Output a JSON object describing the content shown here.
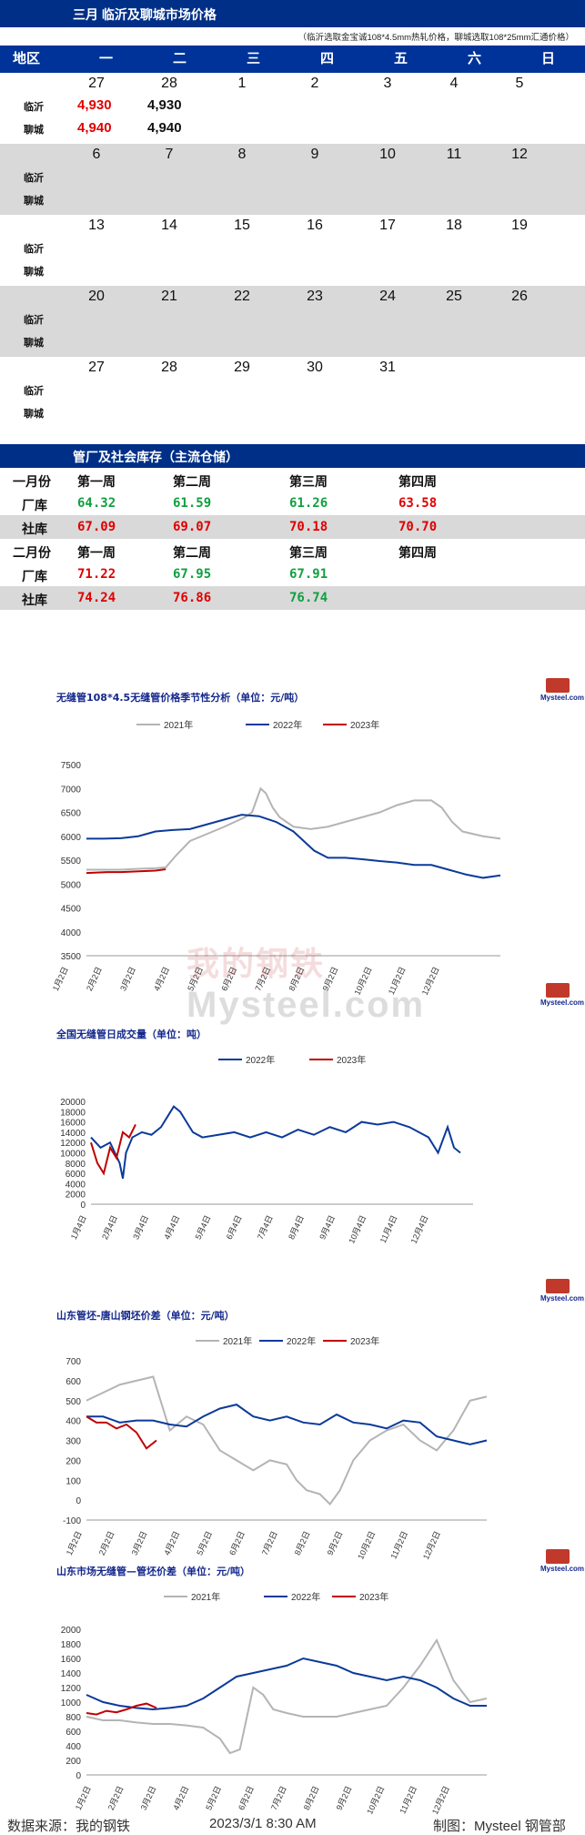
{
  "calendar": {
    "title": "三月 临沂及聊城市场价格",
    "note": "（临沂选取金宝诚108*4.5mm热轧价格，聊城选取108*25mm汇通价格）",
    "header": [
      "地区",
      "一",
      "二",
      "三",
      "四",
      "五",
      "六",
      "日"
    ],
    "region_labels": [
      "临沂",
      "聊城"
    ],
    "weeks": [
      {
        "days": [
          "27",
          "28",
          "1",
          "2",
          "3",
          "4",
          "5"
        ],
        "linyi": [
          "4,930",
          "4,930"
        ],
        "liaocheng": [
          "4,940",
          "4,940"
        ]
      },
      {
        "days": [
          "6",
          "7",
          "8",
          "9",
          "10",
          "11",
          "12"
        ]
      },
      {
        "days": [
          "13",
          "14",
          "15",
          "16",
          "17",
          "18",
          "19"
        ]
      },
      {
        "days": [
          "20",
          "21",
          "22",
          "23",
          "24",
          "25",
          "26"
        ]
      },
      {
        "days": [
          "27",
          "28",
          "29",
          "30",
          "31",
          "",
          ""
        ]
      }
    ]
  },
  "inventory": {
    "title": "管厂及社会库存（主流仓储）",
    "rows": [
      {
        "label": "一月份",
        "cells": [
          "第一周",
          "第二周",
          "第三周",
          "第四周"
        ],
        "kind": "header"
      },
      {
        "label": "厂库",
        "cells": [
          "64.32",
          "61.59",
          "61.26",
          "63.58"
        ],
        "colors": [
          "green",
          "green",
          "green",
          "red"
        ]
      },
      {
        "label": "社库",
        "cells": [
          "67.09",
          "69.07",
          "70.18",
          "70.70"
        ],
        "colors": [
          "red",
          "red",
          "red",
          "red"
        ]
      },
      {
        "label": "二月份",
        "cells": [
          "第一周",
          "第二周",
          "第三周",
          "第四周"
        ],
        "kind": "header"
      },
      {
        "label": "厂库",
        "cells": [
          "71.22",
          "67.95",
          "67.91",
          ""
        ],
        "colors": [
          "red",
          "green",
          "green",
          "red"
        ]
      },
      {
        "label": "社库",
        "cells": [
          "74.24",
          "76.86",
          "76.74",
          ""
        ],
        "colors": [
          "red",
          "red",
          "green",
          "red"
        ]
      }
    ]
  },
  "logo_text": "Mysteel.com",
  "watermark": {
    "cn": "我的钢铁",
    "en": "Mysteel.com"
  },
  "chart_data": [
    {
      "type": "line",
      "title": "无缝管108*4.5无缝管价格季节性分析（单位：元/吨）",
      "legend": [
        "2021年",
        "2022年",
        "2023年"
      ],
      "colors": [
        "#b4b4b4",
        "#0a3a9a",
        "#c00000"
      ],
      "ylim": [
        3500,
        7500
      ],
      "yticks": [
        3500,
        4000,
        4500,
        5000,
        5500,
        6000,
        6500,
        7000,
        7500
      ],
      "xticks": [
        "1月2日",
        "2月2日",
        "3月2日",
        "4月2日",
        "5月2日",
        "6月2日",
        "7月2日",
        "8月2日",
        "9月2日",
        "10月2日",
        "11月2日",
        "12月2日"
      ],
      "series": [
        {
          "name": "2021年",
          "x": [
            0,
            0.5,
            1,
            1.5,
            2,
            2.3,
            2.6,
            3,
            3.5,
            4,
            4.3,
            4.6,
            4.8,
            5,
            5.05,
            5.2,
            5.4,
            5.6,
            5.8,
            6,
            6.5,
            7,
            7.5,
            8,
            8.5,
            9,
            9.5,
            10,
            10.3,
            10.6,
            10.9,
            11.2,
            11.5,
            12
          ],
          "y": [
            5300,
            5300,
            5300,
            5320,
            5330,
            5350,
            5600,
            5900,
            6050,
            6200,
            6300,
            6400,
            6500,
            6900,
            7000,
            6900,
            6600,
            6400,
            6300,
            6200,
            6150,
            6200,
            6300,
            6400,
            6500,
            6650,
            6750,
            6750,
            6600,
            6300,
            6100,
            6050,
            6000,
            5950
          ]
        },
        {
          "name": "2022年",
          "x": [
            0,
            0.5,
            1,
            1.5,
            2,
            2.5,
            3,
            3.5,
            4,
            4.5,
            5,
            5.5,
            6,
            6.3,
            6.6,
            7,
            7.5,
            8,
            8.5,
            9,
            9.5,
            10,
            10.5,
            11,
            11.5,
            12
          ],
          "y": [
            5950,
            5950,
            5960,
            6000,
            6100,
            6130,
            6150,
            6250,
            6350,
            6450,
            6420,
            6300,
            6100,
            5900,
            5700,
            5550,
            5550,
            5520,
            5480,
            5450,
            5400,
            5400,
            5300,
            5200,
            5130,
            5180
          ]
        },
        {
          "name": "2023年",
          "x": [
            0,
            0.3,
            0.6,
            1,
            1.3,
            1.6,
            2,
            2.3
          ],
          "y": [
            5230,
            5240,
            5250,
            5250,
            5260,
            5270,
            5280,
            5310
          ]
        }
      ]
    },
    {
      "type": "line",
      "title": "全国无缝管日成交量（单位：吨）",
      "legend": [
        "2022年",
        "2023年"
      ],
      "colors": [
        "#0a3a9a",
        "#c00000"
      ],
      "ylim": [
        0,
        20000
      ],
      "yticks": [
        0,
        2000,
        4000,
        6000,
        8000,
        10000,
        12000,
        14000,
        16000,
        18000,
        20000
      ],
      "xticks": [
        "1月4日",
        "2月4日",
        "3月4日",
        "4月4日",
        "5月4日",
        "6月4日",
        "7月4日",
        "8月4日",
        "9月4日",
        "10月4日",
        "11月4日",
        "12月4日"
      ],
      "series": [
        {
          "name": "2022年",
          "x": [
            0,
            0.3,
            0.6,
            0.9,
            1.0,
            1.1,
            1.3,
            1.6,
            1.9,
            2.2,
            2.4,
            2.6,
            2.8,
            3.0,
            3.2,
            3.5,
            4,
            4.5,
            5,
            5.5,
            6,
            6.5,
            7,
            7.5,
            8,
            8.5,
            9,
            9.5,
            10,
            10.3,
            10.6,
            10.9,
            11.2,
            11.4,
            11.6
          ],
          "y": [
            13000,
            11000,
            12000,
            8000,
            5000,
            10000,
            13000,
            14000,
            13500,
            15000,
            17000,
            19000,
            18000,
            16000,
            14000,
            13000,
            13500,
            14000,
            13000,
            14000,
            13000,
            14500,
            13500,
            15000,
            14000,
            16000,
            15500,
            16000,
            15000,
            14000,
            13000,
            10000,
            15000,
            11000,
            10000
          ]
        },
        {
          "name": "2023年",
          "x": [
            0,
            0.2,
            0.4,
            0.6,
            0.8,
            1.0,
            1.2,
            1.4
          ],
          "y": [
            12000,
            8000,
            6000,
            11000,
            9000,
            14000,
            13000,
            15500
          ]
        }
      ]
    },
    {
      "type": "line",
      "title": "山东管坯-唐山钢坯价差（单位：元/吨）",
      "legend": [
        "2021年",
        "2022年",
        "2023年"
      ],
      "colors": [
        "#b4b4b4",
        "#0a3a9a",
        "#c00000"
      ],
      "ylim": [
        -100,
        700
      ],
      "yticks": [
        -100,
        0,
        100,
        200,
        300,
        400,
        500,
        600,
        700
      ],
      "xticks": [
        "1月2日",
        "2月2日",
        "3月2日",
        "4月2日",
        "5月2日",
        "6月2日",
        "7月2日",
        "8月2日",
        "9月2日",
        "10月2日",
        "11月2日",
        "12月2日"
      ],
      "series": [
        {
          "name": "2021年",
          "x": [
            0,
            0.5,
            1,
            1.5,
            2,
            2.5,
            3,
            3.5,
            4,
            4.5,
            5,
            5.5,
            6,
            6.3,
            6.6,
            7,
            7.3,
            7.6,
            8,
            8.5,
            9,
            9.5,
            10,
            10.5,
            11,
            11.5,
            12
          ],
          "y": [
            500,
            540,
            580,
            600,
            620,
            350,
            420,
            380,
            250,
            200,
            150,
            200,
            180,
            100,
            50,
            30,
            -20,
            50,
            200,
            300,
            350,
            380,
            300,
            250,
            350,
            500,
            520
          ]
        },
        {
          "name": "2022年",
          "x": [
            0,
            0.5,
            1,
            1.5,
            2,
            2.5,
            3,
            3.5,
            4,
            4.5,
            5,
            5.5,
            6,
            6.5,
            7,
            7.5,
            8,
            8.5,
            9,
            9.5,
            10,
            10.5,
            11,
            11.5,
            12
          ],
          "y": [
            420,
            420,
            390,
            400,
            400,
            380,
            370,
            420,
            460,
            480,
            420,
            400,
            420,
            390,
            380,
            430,
            390,
            380,
            360,
            400,
            390,
            320,
            300,
            280,
            300
          ]
        },
        {
          "name": "2023年",
          "x": [
            0,
            0.3,
            0.6,
            0.9,
            1.2,
            1.5,
            1.8,
            2.1
          ],
          "y": [
            420,
            390,
            390,
            360,
            380,
            340,
            260,
            300
          ]
        }
      ]
    },
    {
      "type": "line",
      "title": "山东市场无缝管—管坯价差（单位：元/吨）",
      "legend": [
        "2021年",
        "2022年",
        "2023年"
      ],
      "colors": [
        "#b4b4b4",
        "#0a3a9a",
        "#c00000"
      ],
      "ylim": [
        0,
        2000
      ],
      "yticks": [
        0,
        200,
        400,
        600,
        800,
        1000,
        1200,
        1400,
        1600,
        1800,
        2000
      ],
      "xticks": [
        "1月2日",
        "2月2日",
        "3月2日",
        "4月2日",
        "5月2日",
        "6月2日",
        "7月2日",
        "8月2日",
        "9月2日",
        "10月2日",
        "11月2日",
        "12月2日"
      ],
      "series": [
        {
          "name": "2021年",
          "x": [
            0,
            0.5,
            1,
            1.5,
            2,
            2.5,
            3,
            3.5,
            4,
            4.3,
            4.6,
            5,
            5.3,
            5.6,
            6,
            6.5,
            7,
            7.5,
            8,
            8.5,
            9,
            9.5,
            10,
            10.5,
            11,
            11.5,
            12
          ],
          "y": [
            800,
            750,
            750,
            720,
            700,
            700,
            680,
            650,
            500,
            300,
            350,
            1200,
            1100,
            900,
            850,
            800,
            800,
            800,
            850,
            900,
            950,
            1200,
            1500,
            1850,
            1300,
            1000,
            1050
          ]
        },
        {
          "name": "2022年",
          "x": [
            0,
            0.5,
            1,
            1.5,
            2,
            2.5,
            3,
            3.5,
            4,
            4.5,
            5,
            5.5,
            6,
            6.5,
            7,
            7.5,
            8,
            8.5,
            9,
            9.5,
            10,
            10.5,
            11,
            11.5,
            12
          ],
          "y": [
            1100,
            1000,
            950,
            920,
            900,
            920,
            950,
            1050,
            1200,
            1350,
            1400,
            1450,
            1500,
            1600,
            1550,
            1500,
            1400,
            1350,
            1300,
            1350,
            1300,
            1200,
            1050,
            950,
            950
          ]
        },
        {
          "name": "2023年",
          "x": [
            0,
            0.3,
            0.6,
            0.9,
            1.2,
            1.5,
            1.8,
            2.1
          ],
          "y": [
            850,
            830,
            880,
            860,
            900,
            950,
            980,
            920
          ]
        }
      ]
    }
  ],
  "footer": {
    "source": "数据来源：我的钢铁",
    "date": "2023/3/1 8:30 AM",
    "maker": "制图：Mysteel 钢管部"
  }
}
